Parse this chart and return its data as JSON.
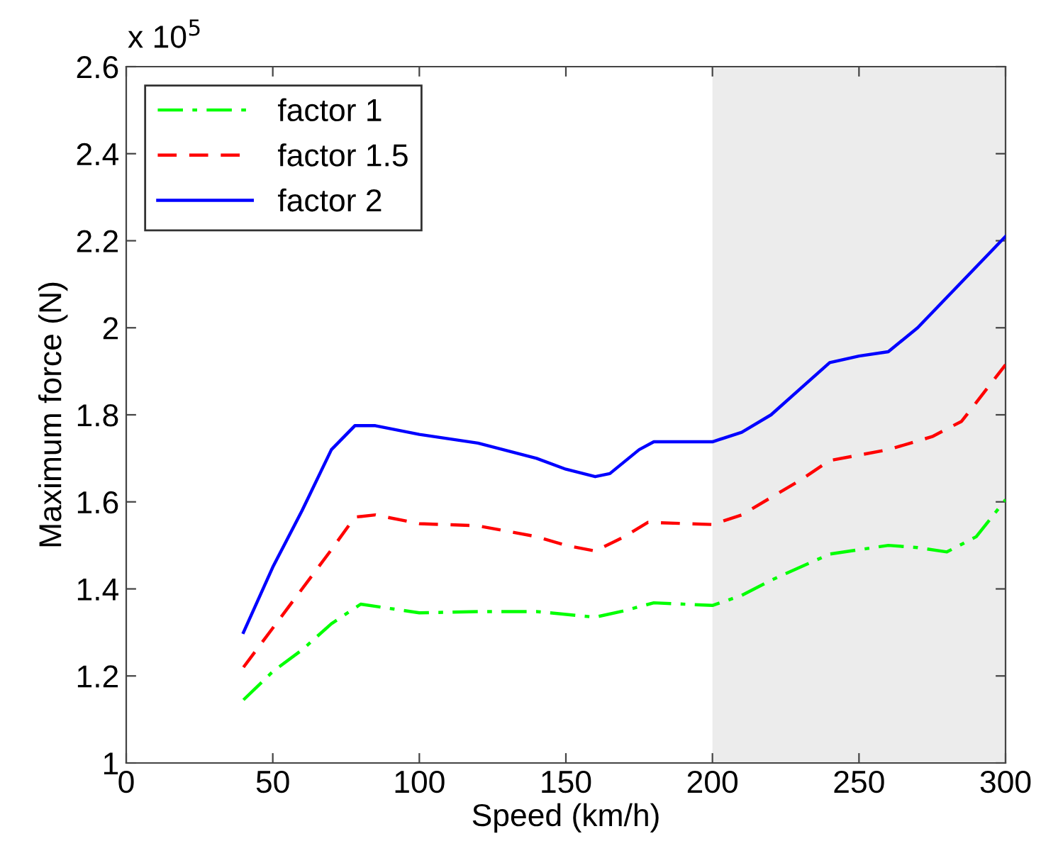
{
  "chart_data": {
    "type": "line",
    "xlabel": "Speed (km/h)",
    "ylabel": "Maximum force (N)",
    "annotations": [
      "x 10$^{5}$"
    ],
    "xlim": [
      0,
      300
    ],
    "xticks": [
      0,
      50,
      100,
      150,
      200,
      250,
      300
    ],
    "ylim": [
      1,
      2.6
    ],
    "yticks": [
      1,
      1.2,
      1.4,
      1.6,
      1.8,
      2,
      2.2,
      2.4,
      2.6
    ],
    "grid": false,
    "legend": "top left",
    "bands": [
      {
        "axis": "x",
        "from": 200,
        "to": 300,
        "color": "#ececec"
      }
    ],
    "series": [
      {
        "name": "factor 1",
        "color": "#00ff00",
        "line_style": "dashdot",
        "x": [
          40,
          50,
          60,
          70,
          80,
          90,
          100,
          120,
          140,
          160,
          170,
          180,
          200,
          210,
          220,
          240,
          260,
          270,
          280,
          290,
          300
        ],
        "values": [
          1.145,
          1.21,
          1.26,
          1.32,
          1.365,
          1.355,
          1.345,
          1.348,
          1.348,
          1.335,
          1.35,
          1.368,
          1.362,
          1.385,
          1.42,
          1.48,
          1.5,
          1.495,
          1.485,
          1.52,
          1.605
        ]
      },
      {
        "name": "factor 1.5",
        "color": "#ff0000",
        "line_style": "dashed",
        "x": [
          40,
          50,
          60,
          70,
          78,
          85,
          100,
          120,
          140,
          150,
          160,
          170,
          178,
          200,
          210,
          220,
          230,
          240,
          260,
          275,
          285,
          300
        ],
        "values": [
          1.22,
          1.31,
          1.4,
          1.49,
          1.565,
          1.57,
          1.55,
          1.545,
          1.52,
          1.5,
          1.487,
          1.52,
          1.553,
          1.548,
          1.57,
          1.61,
          1.65,
          1.695,
          1.72,
          1.75,
          1.785,
          1.915
        ]
      },
      {
        "name": "factor 2",
        "color": "#0000ff",
        "line_style": "solid",
        "x": [
          40,
          50,
          60,
          70,
          78,
          85,
          100,
          120,
          140,
          150,
          160,
          165,
          175,
          180,
          200,
          210,
          220,
          230,
          240,
          250,
          260,
          270,
          280,
          300
        ],
        "values": [
          1.3,
          1.45,
          1.58,
          1.72,
          1.775,
          1.775,
          1.755,
          1.735,
          1.7,
          1.675,
          1.658,
          1.665,
          1.72,
          1.738,
          1.738,
          1.76,
          1.8,
          1.86,
          1.92,
          1.935,
          1.945,
          2.0,
          2.07,
          2.21
        ]
      }
    ]
  }
}
